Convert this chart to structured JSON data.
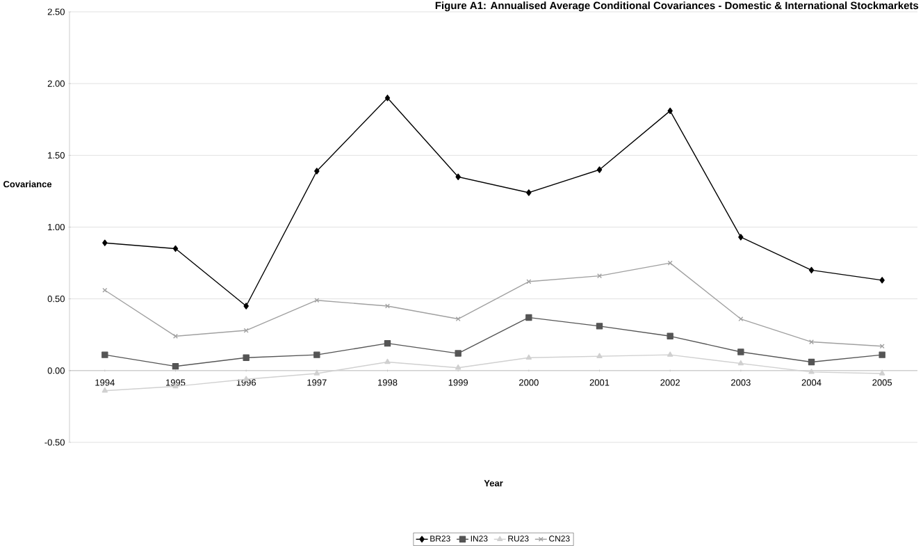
{
  "chart_data": {
    "type": "line",
    "title": "Figure A1: Annualised Average Conditional Covariances - Domestic & International Stockmarkets",
    "xlabel": "Year",
    "ylabel": "Covariance",
    "categories": [
      "1994",
      "1995",
      "1996",
      "1997",
      "1998",
      "1999",
      "2000",
      "2001",
      "2002",
      "2003",
      "2004",
      "2005"
    ],
    "series": [
      {
        "name": "BR23",
        "color": "#000000",
        "marker": "diamond",
        "values": [
          0.89,
          0.85,
          0.45,
          1.39,
          1.9,
          1.35,
          1.24,
          1.4,
          1.81,
          0.93,
          0.7,
          0.63
        ]
      },
      {
        "name": "IN23",
        "color": "#555555",
        "marker": "square",
        "values": [
          0.11,
          0.03,
          0.09,
          0.11,
          0.19,
          0.12,
          0.37,
          0.31,
          0.24,
          0.13,
          0.06,
          0.11
        ]
      },
      {
        "name": "RU23",
        "color": "#d0d0d0",
        "marker": "triangle",
        "values": [
          -0.14,
          -0.11,
          -0.06,
          -0.02,
          0.06,
          0.02,
          0.09,
          0.1,
          0.11,
          0.05,
          -0.01,
          -0.02
        ]
      },
      {
        "name": "CN23",
        "color": "#a0a0a0",
        "marker": "cross",
        "values": [
          0.56,
          0.24,
          0.28,
          0.49,
          0.45,
          0.36,
          0.62,
          0.66,
          0.75,
          0.36,
          0.2,
          0.17
        ]
      }
    ],
    "ylim": [
      -0.5,
      2.5
    ],
    "yticks": [
      {
        "value": -0.5,
        "label": "-0.50"
      },
      {
        "value": 0,
        "label": "0.00"
      },
      {
        "value": 0.5,
        "label": "0.50"
      },
      {
        "value": 1,
        "label": "1.00"
      },
      {
        "value": 1.5,
        "label": "1.50"
      },
      {
        "value": 2,
        "label": "2.00"
      },
      {
        "value": 2.5,
        "label": "2.50"
      }
    ],
    "grid": "y",
    "legend": "bottom",
    "line_style": "solid"
  }
}
